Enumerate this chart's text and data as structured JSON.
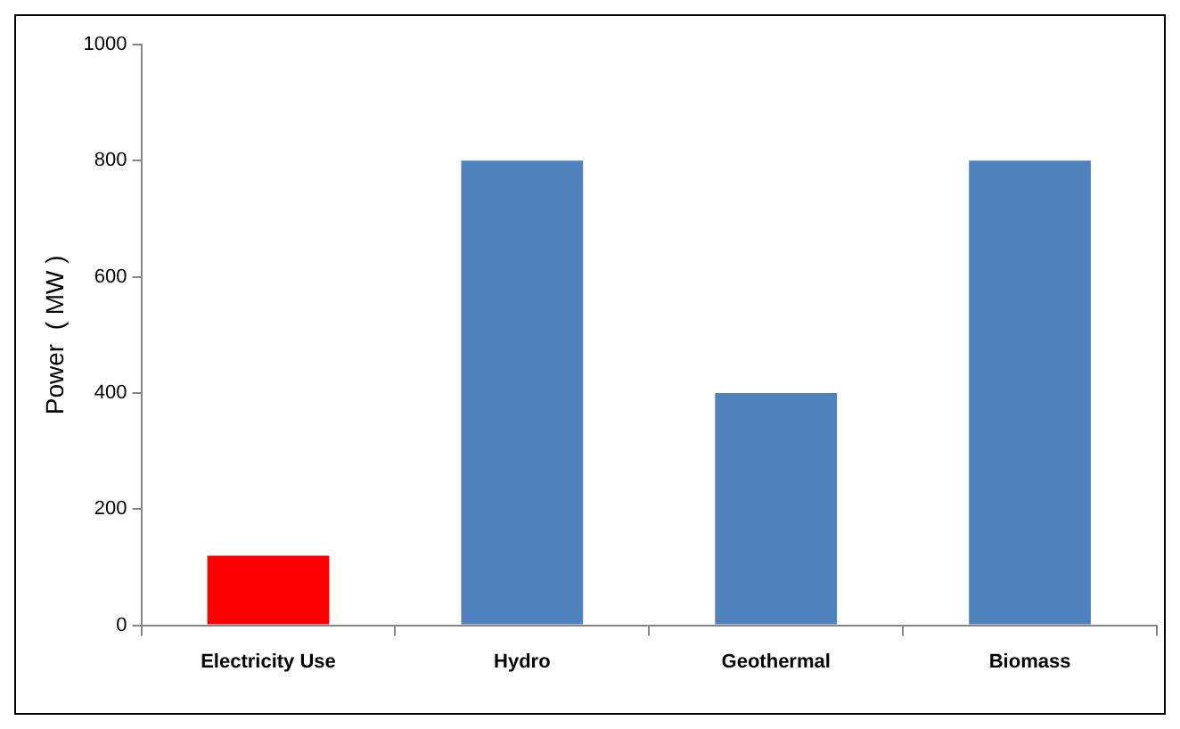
{
  "chart_data": {
    "type": "bar",
    "ylabel": "Power  ( MW )",
    "categories": [
      "Electricity Use",
      "Hydro",
      "Geothermal",
      "Biomass"
    ],
    "values": [
      120,
      800,
      400,
      800
    ],
    "colors": [
      "#ff0000",
      "#4f81bd",
      "#4f81bd",
      "#4f81bd"
    ],
    "ylim": [
      0,
      1000
    ],
    "yticks": [
      0,
      200,
      400,
      600,
      800,
      1000
    ]
  }
}
